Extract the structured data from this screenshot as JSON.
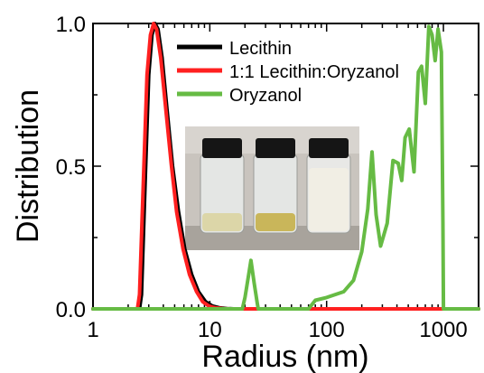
{
  "chart_data": {
    "type": "line",
    "xlabel": "Radius (nm)",
    "ylabel": "Distribution",
    "xscale": "log",
    "xlim": [
      1,
      2000
    ],
    "ylim": [
      0,
      1.0
    ],
    "xticks": [
      1,
      10,
      100,
      1000
    ],
    "xtick_labels": [
      "1",
      "10",
      "100",
      "1000"
    ],
    "yticks": [
      0,
      0.5,
      1.0
    ],
    "ytick_labels": [
      "0.0",
      "0.5",
      "1.0"
    ],
    "legend_position": "top-center",
    "series": [
      {
        "name": "Lecithin",
        "color": "#000000",
        "x": [
          1,
          2.5,
          2.6,
          2.8,
          3.0,
          3.2,
          3.4,
          3.6,
          3.9,
          4.3,
          4.8,
          5.4,
          6.1,
          7.0,
          8.0,
          9.2,
          10.5,
          12,
          14,
          16,
          2000
        ],
        "y": [
          0,
          0,
          0.05,
          0.45,
          0.82,
          0.96,
          1.0,
          0.98,
          0.88,
          0.7,
          0.5,
          0.34,
          0.21,
          0.12,
          0.06,
          0.025,
          0.01,
          0.004,
          0.001,
          0,
          0
        ]
      },
      {
        "name": "1:1 Lecithin:Oryzanol",
        "color": "#ff2020",
        "x": [
          1,
          2.4,
          2.5,
          2.7,
          2.9,
          3.1,
          3.3,
          3.5,
          3.8,
          4.2,
          4.7,
          5.2,
          5.9,
          6.7,
          7.7,
          8.7,
          9.8,
          11,
          13,
          15,
          2000
        ],
        "y": [
          0,
          0,
          0.05,
          0.45,
          0.82,
          0.96,
          1.0,
          0.98,
          0.88,
          0.7,
          0.5,
          0.34,
          0.21,
          0.12,
          0.06,
          0.025,
          0.01,
          0.004,
          0.001,
          0,
          0
        ]
      },
      {
        "name": "Oryzanol",
        "color": "#66bb44",
        "x": [
          1,
          19,
          20,
          21.5,
          22.5,
          24,
          25.5,
          26,
          70,
          80,
          100,
          140,
          170,
          200,
          225,
          245,
          265,
          290,
          330,
          370,
          410,
          440,
          470,
          510,
          560,
          610,
          650,
          700,
          750,
          800,
          850,
          900,
          960,
          990,
          1000,
          2000
        ],
        "y": [
          0,
          0,
          0.04,
          0.12,
          0.17,
          0.09,
          0.02,
          0,
          0,
          0.03,
          0.04,
          0.06,
          0.1,
          0.2,
          0.35,
          0.55,
          0.33,
          0.22,
          0.3,
          0.52,
          0.51,
          0.45,
          0.6,
          0.63,
          0.48,
          0.83,
          0.85,
          0.72,
          0.99,
          0.96,
          0.87,
          0.98,
          0.9,
          0.3,
          0,
          0
        ]
      }
    ]
  },
  "inset": {
    "description": "photo-inset-three-vials"
  }
}
